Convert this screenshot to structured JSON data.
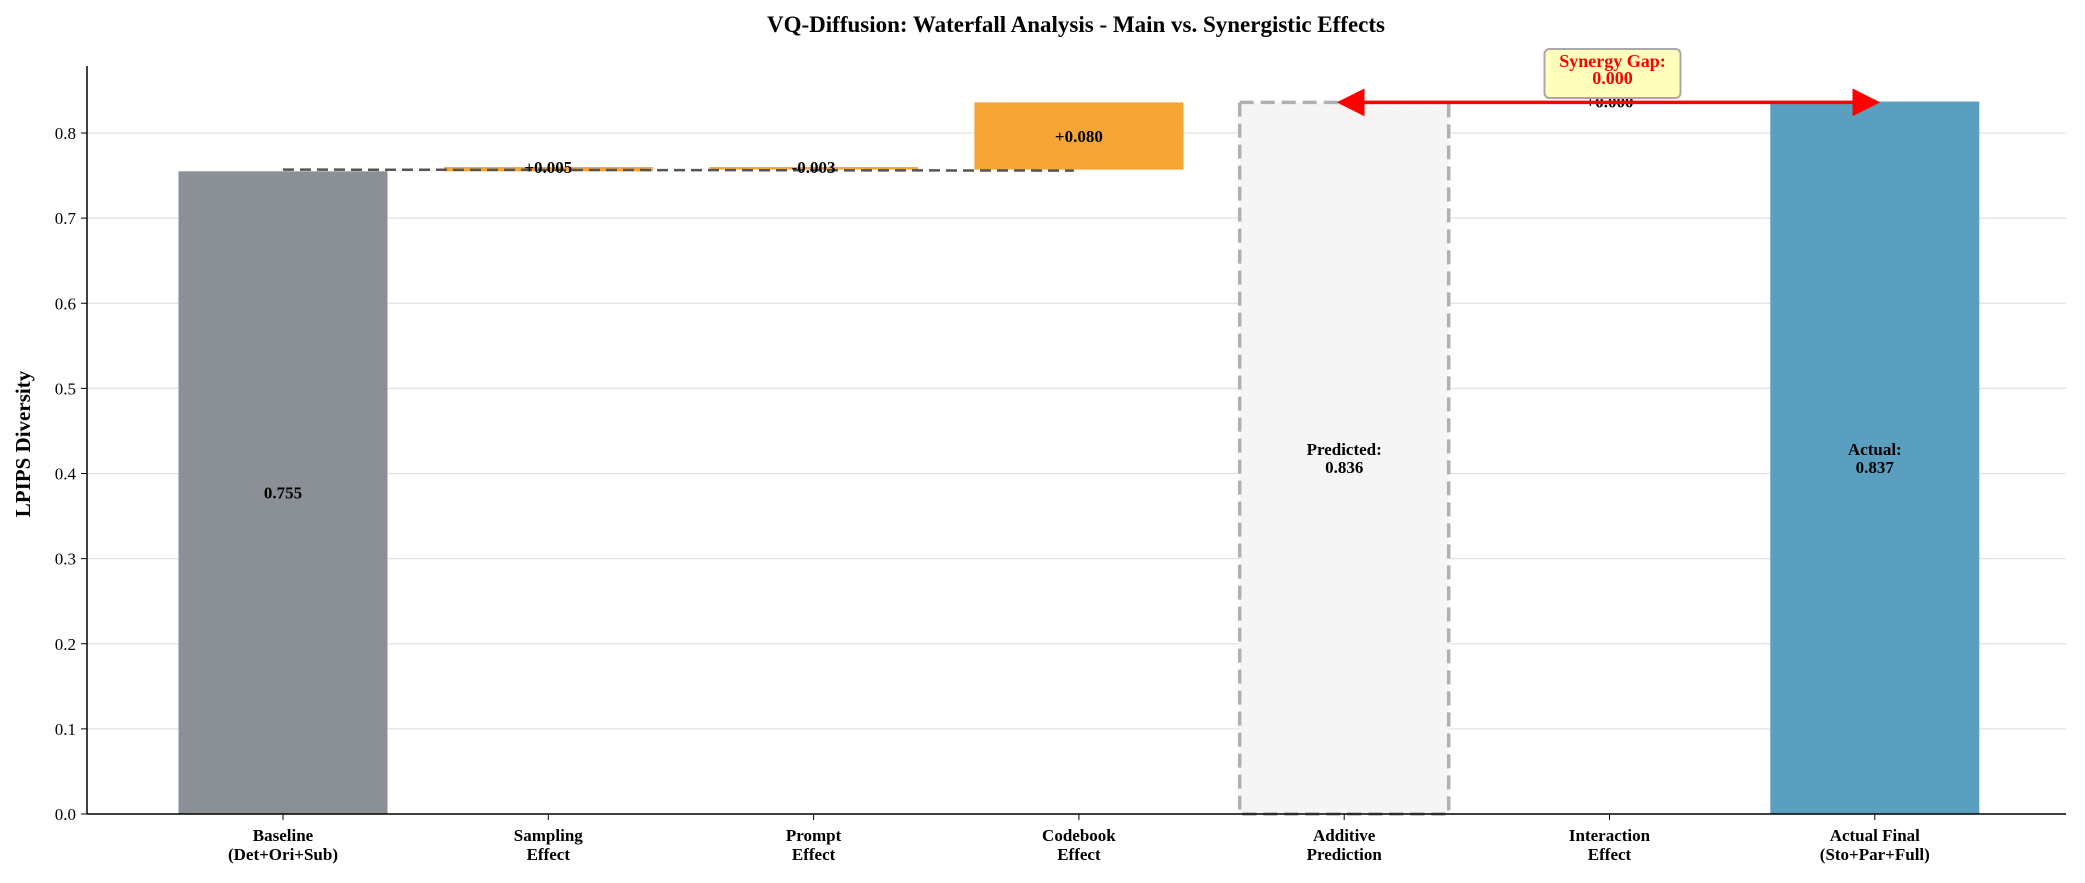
{
  "chart_data": {
    "type": "waterfall",
    "title": "VQ-Diffusion: Waterfall Analysis - Main vs. Synergistic Effects",
    "xlabel": "",
    "ylabel": "LPIPS Diversity",
    "ylim": [
      0,
      0.88
    ],
    "yticks": [
      "0.0",
      "0.1",
      "0.2",
      "0.3",
      "0.4",
      "0.5",
      "0.6",
      "0.7",
      "0.8"
    ],
    "grid": "horizontal",
    "categories": [
      [
        "Baseline",
        "(Det+Ori+Sub)"
      ],
      [
        "Sampling",
        "Effect"
      ],
      [
        "Prompt",
        "Effect"
      ],
      [
        "Codebook",
        "Effect"
      ],
      [
        "Additive",
        "Prediction"
      ],
      [
        "Interaction",
        "Effect"
      ],
      [
        "Actual Final",
        "(Sto+Par+Full)"
      ]
    ],
    "bars": [
      {
        "kind": "total",
        "start": 0,
        "end": 0.755,
        "label": "0.755",
        "color": "#8a9096"
      },
      {
        "kind": "delta",
        "start": 0.755,
        "end": 0.76,
        "label": "+0.005",
        "color": "#f4a535"
      },
      {
        "kind": "delta",
        "start": 0.76,
        "end": 0.757,
        "label": "-0.003",
        "color": "#f4a535"
      },
      {
        "kind": "delta",
        "start": 0.757,
        "end": 0.836,
        "label": "+0.080",
        "color": "#f4a535"
      },
      {
        "kind": "prediction",
        "start": 0,
        "end": 0.836,
        "label": "Predicted:\n0.836",
        "color": "#f5f5f5"
      },
      {
        "kind": "delta",
        "start": 0.836,
        "end": 0.837,
        "label": "+0.000",
        "color": "#f4a535"
      },
      {
        "kind": "total",
        "start": 0,
        "end": 0.837,
        "label": "Actual:\n0.837",
        "color": "#5a9fbf"
      }
    ],
    "annotation": {
      "text": [
        "Synergy Gap:",
        "0.000"
      ],
      "color": "#ff0000",
      "box_color": "#ffffbb"
    }
  }
}
